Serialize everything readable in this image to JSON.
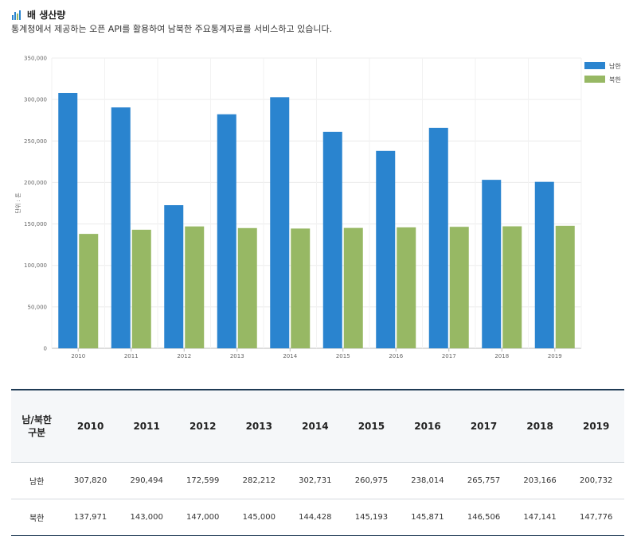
{
  "header": {
    "title": "배 생산량",
    "subtitle": "통계청에서 제공하는 오픈 API를 활용하여 남북한 주요통계자료를 서비스하고 있습니다."
  },
  "colors": {
    "south": "#2a84cf",
    "north": "#97b864",
    "accent": "#1f3b55"
  },
  "chart_data": {
    "type": "bar",
    "categories": [
      "2010",
      "2011",
      "2012",
      "2013",
      "2014",
      "2015",
      "2016",
      "2017",
      "2018",
      "2019"
    ],
    "series": [
      {
        "name": "남한",
        "values": [
          307820,
          290494,
          172599,
          282212,
          302731,
          260975,
          238014,
          265757,
          203166,
          200732
        ]
      },
      {
        "name": "북한",
        "values": [
          137971,
          143000,
          147000,
          145000,
          144428,
          145193,
          145871,
          146506,
          147141,
          147776
        ]
      }
    ],
    "ylabel": "단위 : 톤",
    "ylim": [
      0,
      350000
    ],
    "yticks": [
      "0",
      "50,000",
      "100,000",
      "150,000",
      "200,000",
      "250,000",
      "300,000",
      "350,000"
    ],
    "grid": true,
    "legend": "top-right"
  },
  "table": {
    "header_line1": "남/북한",
    "header_line2": "구분",
    "years": [
      "2010",
      "2011",
      "2012",
      "2013",
      "2014",
      "2015",
      "2016",
      "2017",
      "2018",
      "2019"
    ],
    "rows": [
      {
        "label": "남한",
        "values": [
          "307,820",
          "290,494",
          "172,599",
          "282,212",
          "302,731",
          "260,975",
          "238,014",
          "265,757",
          "203,166",
          "200,732"
        ]
      },
      {
        "label": "북한",
        "values": [
          "137,971",
          "143,000",
          "147,000",
          "145,000",
          "144,428",
          "145,193",
          "145,871",
          "146,506",
          "147,141",
          "147,776"
        ]
      }
    ]
  }
}
